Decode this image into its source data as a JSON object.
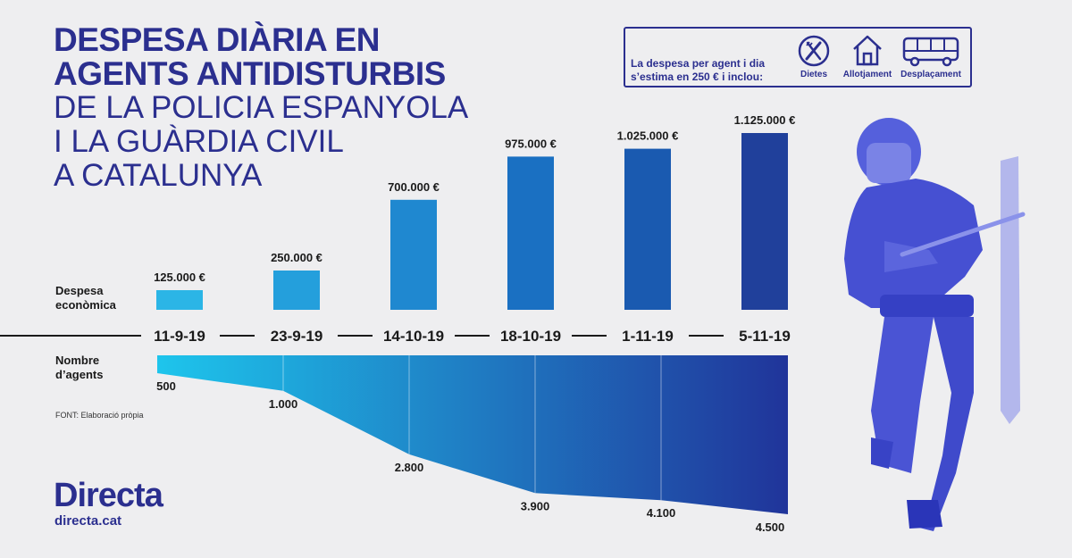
{
  "title": {
    "line1": "DESPESA DIÀRIA EN",
    "line2": "AGENTS ANTIDISTURBIS",
    "line3": "DE LA POLICIA ESPANYOLA",
    "line4": "I LA GUÀRDIA CIVIL",
    "line5": "A CATALUNYA"
  },
  "info_box": {
    "text": "La despesa per agent i dia s’estima en 250 € i inclou:",
    "items": [
      {
        "label": "Dietes",
        "icon": "fork-knife-icon"
      },
      {
        "label": "Allotjament",
        "icon": "house-icon"
      },
      {
        "label": "Desplaçament",
        "icon": "van-icon"
      }
    ]
  },
  "labels": {
    "despesa": "Despesa econòmica",
    "nombre": "Nombre d’agents",
    "source": "FONT: Elaboració pròpia"
  },
  "logo": {
    "name": "Directa",
    "url": "directa.cat"
  },
  "chart_data": [
    {
      "type": "bar",
      "categories": [
        "11-9-19",
        "23-9-19",
        "14-10-19",
        "18-10-19",
        "1-11-19",
        "5-11-19"
      ],
      "values": [
        125000,
        250000,
        700000,
        975000,
        1025000,
        1125000
      ],
      "value_labels": [
        "125.000 €",
        "250.000 €",
        "700.000 €",
        "975.000 €",
        "1.025.000 €",
        "1.125.000 €"
      ],
      "ylabel": "Despesa econòmica",
      "ylim": [
        0,
        1125000
      ],
      "colors": [
        "#2bb5e6",
        "#249fdc",
        "#1f88d0",
        "#1a70c2",
        "#1a5ab0",
        "#20409b"
      ]
    },
    {
      "type": "area",
      "categories": [
        "11-9-19",
        "23-9-19",
        "14-10-19",
        "18-10-19",
        "1-11-19",
        "5-11-19"
      ],
      "values": [
        500,
        1000,
        2800,
        3900,
        4100,
        4500
      ],
      "value_labels": [
        "500",
        "1.000",
        "2.800",
        "3.900",
        "4.100",
        "4.500"
      ],
      "ylabel": "Nombre d’agents",
      "ylim": [
        0,
        4500
      ],
      "colors": [
        "#1ec5ec",
        "#20349a"
      ]
    }
  ]
}
